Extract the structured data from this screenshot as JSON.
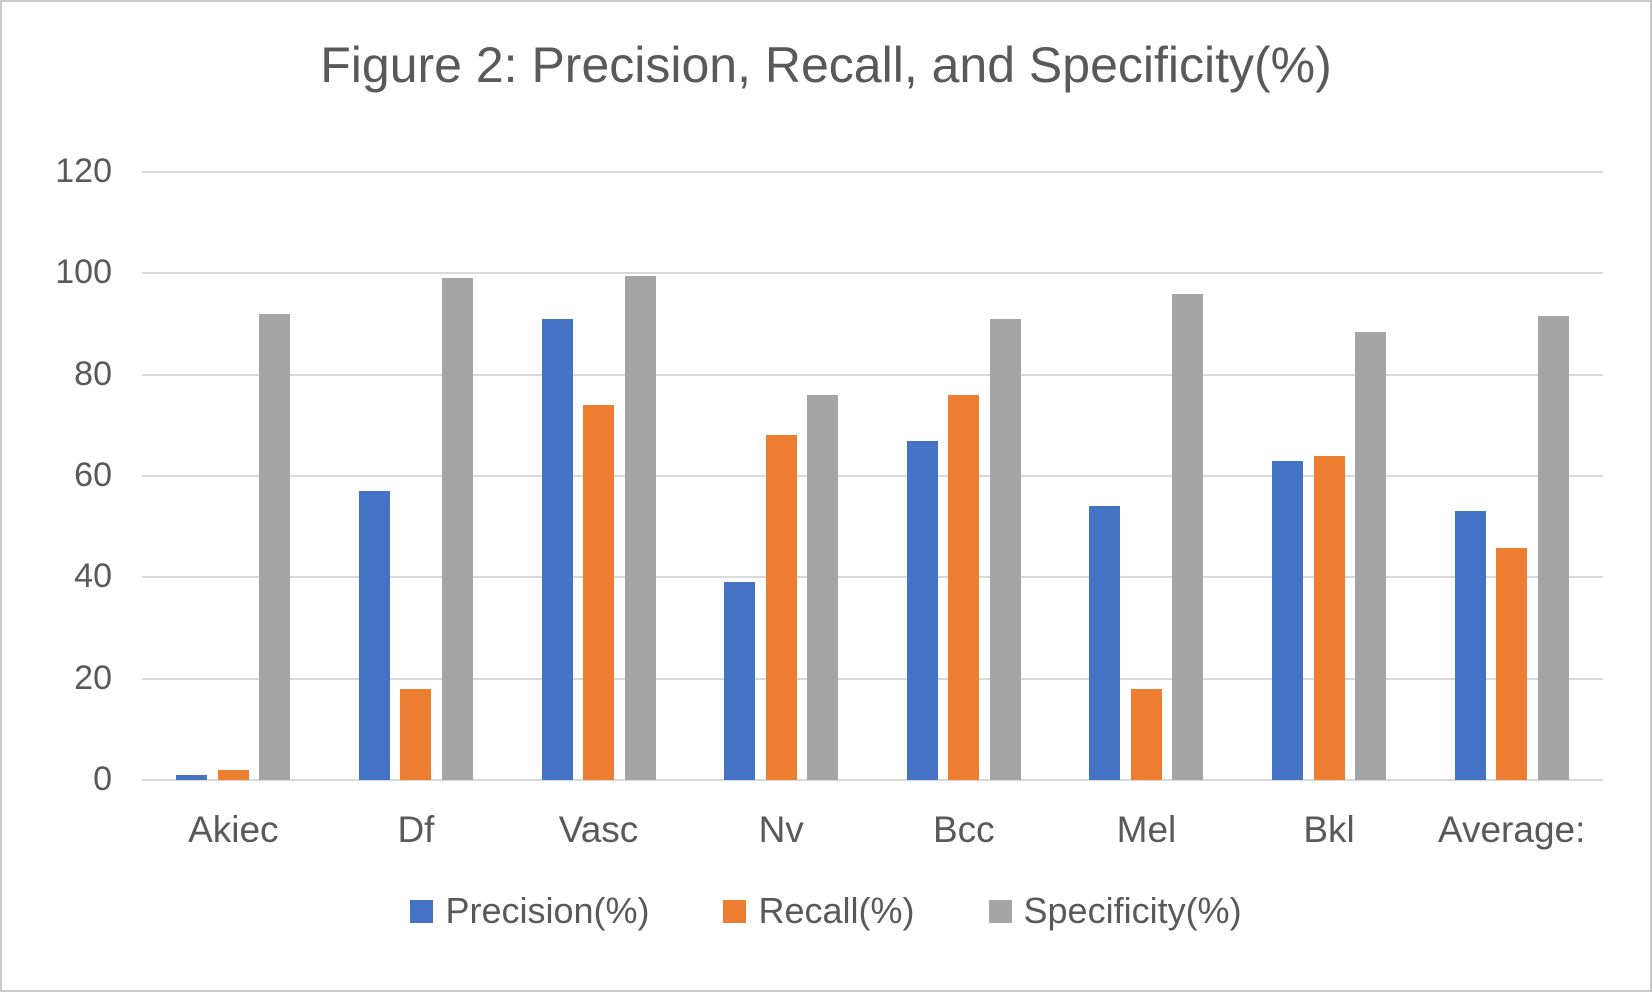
{
  "title": "Figure 2: Precision, Recall, and Specificity(%)",
  "chart_data": {
    "type": "bar",
    "title": "Figure 2: Precision, Recall, and Specificity(%)",
    "xlabel": "",
    "ylabel": "",
    "categories": [
      "Akiec",
      "Df",
      "Vasc",
      "Nv",
      "Bcc",
      "Mel",
      "Bkl",
      "Average:"
    ],
    "series": [
      {
        "name": "Precision(%)",
        "color": "#4472C4",
        "values": [
          1,
          57,
          91,
          39,
          67,
          54,
          63,
          53
        ]
      },
      {
        "name": "Recall(%)",
        "color": "#ED7D31",
        "values": [
          2,
          18,
          74,
          68,
          76,
          18,
          64,
          45.7
        ]
      },
      {
        "name": "Specificity(%)",
        "color": "#A5A5A5",
        "values": [
          92,
          99,
          99.5,
          76,
          91,
          96,
          88.5,
          91.5
        ]
      }
    ],
    "y_ticks": [
      0,
      20,
      40,
      60,
      80,
      100,
      120
    ],
    "ylim": [
      0,
      120
    ],
    "grid": true,
    "legend_position": "bottom",
    "text_color": "#595959",
    "gridline_color": "#D9D9D9",
    "background_color": "#FFFFFF"
  }
}
